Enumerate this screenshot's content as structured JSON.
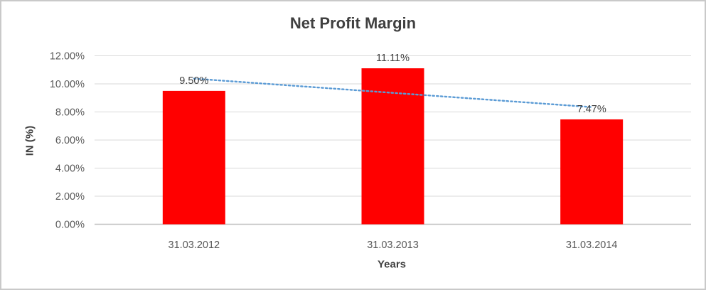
{
  "chart_data": {
    "type": "bar",
    "title": "Net Profit Margin",
    "xlabel": "Years",
    "ylabel": "IN (%)",
    "categories": [
      "31.03.2012",
      "31.03.2013",
      "31.03.2014"
    ],
    "values": [
      9.5,
      11.11,
      7.47
    ],
    "data_labels": [
      "9.50%",
      "11.11%",
      "7.47%"
    ],
    "y_ticks": [
      "0.00%",
      "2.00%",
      "4.00%",
      "6.00%",
      "8.00%",
      "10.00%",
      "12.00%"
    ],
    "y_tick_values": [
      0,
      2,
      4,
      6,
      8,
      10,
      12
    ],
    "ylim": [
      0,
      12
    ],
    "grid": true,
    "legend": "none",
    "trendline": {
      "type": "linear",
      "style": "dotted",
      "start_value": 10.375,
      "end_value": 8.345,
      "color": "#5B9BD5"
    },
    "colors": {
      "bar": "#FF0000",
      "gridline": "#D9D9D9",
      "axis_line": "#BFBFBF",
      "tick_text": "#595959",
      "title_text": "#404040",
      "label_text": "#404040",
      "frame_border": "#C9C9C9",
      "trendline": "#5B9BD5"
    }
  }
}
